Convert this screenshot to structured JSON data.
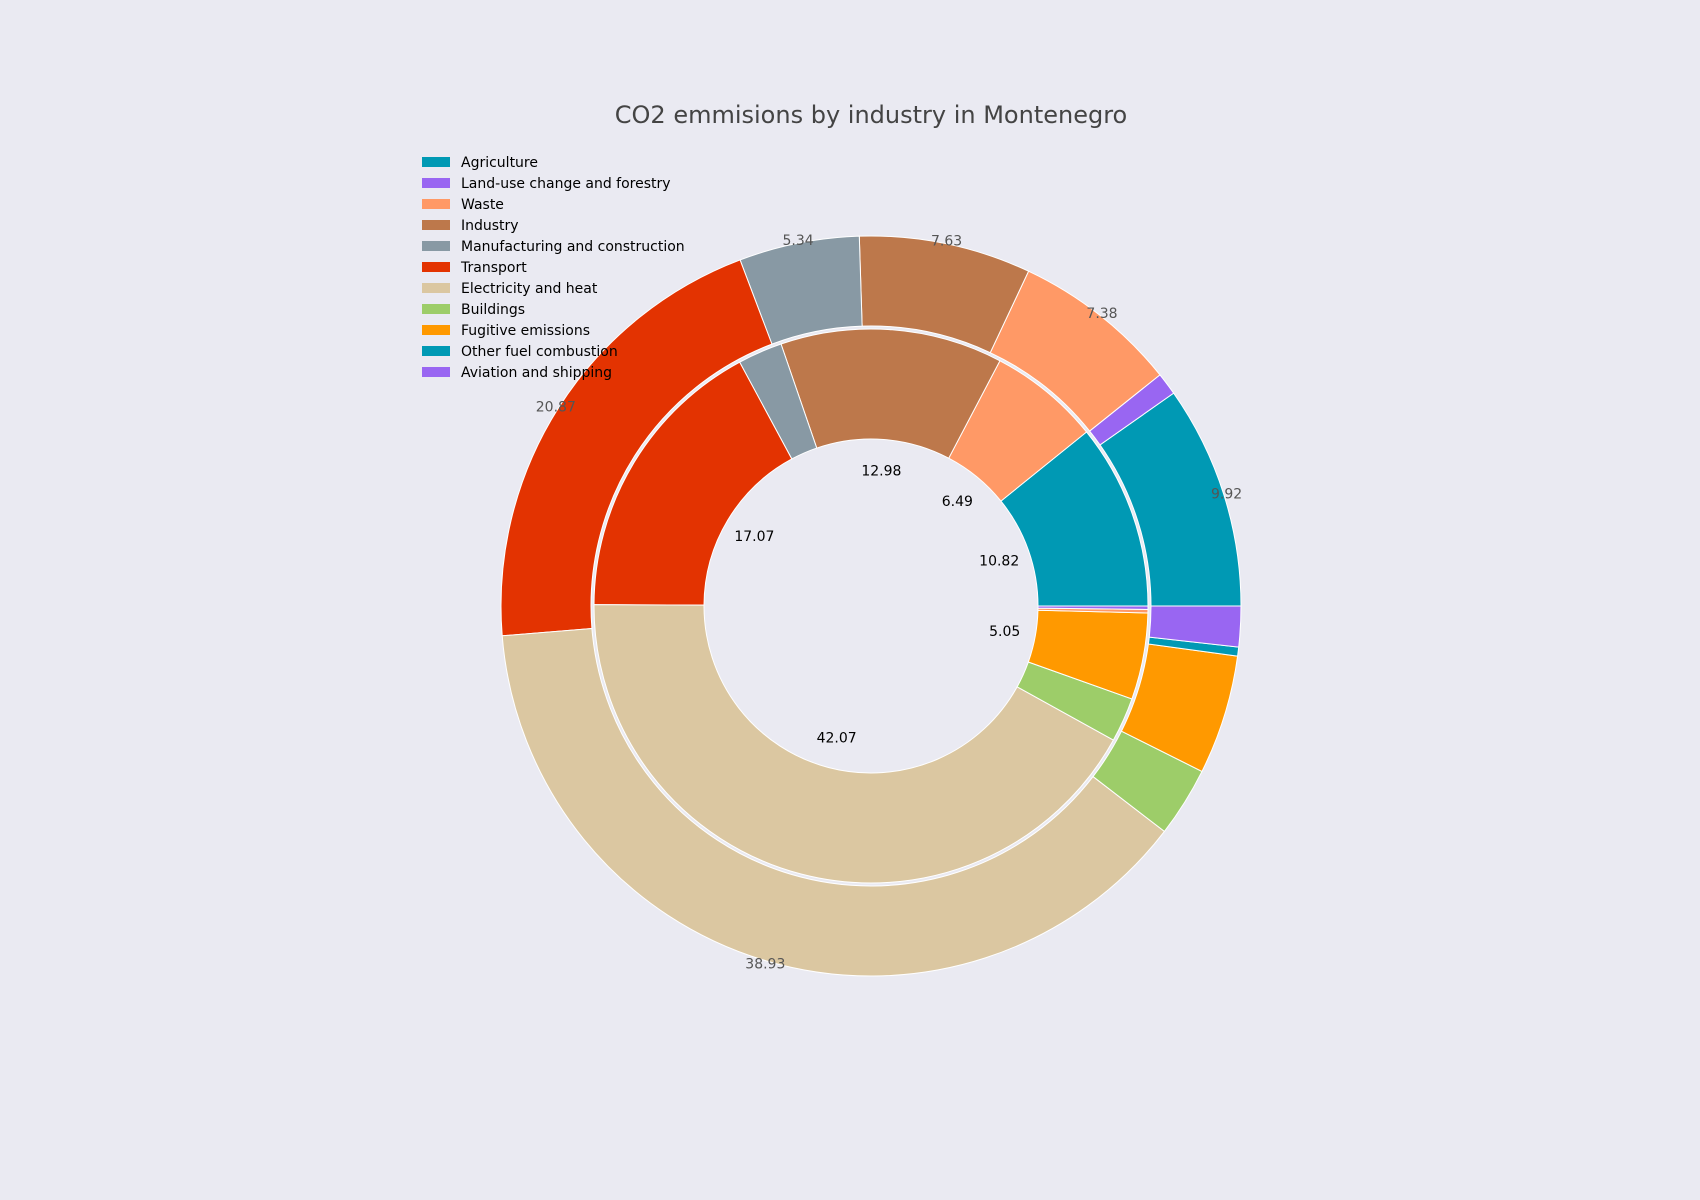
{
  "chart_data": {
    "type": "pie",
    "subtype": "nested-donut",
    "title": "CO2 emmisions by industry in Montenegro",
    "legend_position": "top-left",
    "legend": [
      {
        "label": "Agriculture",
        "color": "#0099b4"
      },
      {
        "label": "Land-use change and forestry",
        "color": "#9966f2"
      },
      {
        "label": "Waste",
        "color": "#ff9966"
      },
      {
        "label": "Industry",
        "color": "#bd784b"
      },
      {
        "label": "Manufacturing and construction",
        "color": "#8899a4"
      },
      {
        "label": "Transport",
        "color": "#e33301"
      },
      {
        "label": "Electricity and heat",
        "color": "#dbc7a1"
      },
      {
        "label": "Buildings",
        "color": "#9dcd69"
      },
      {
        "label": "Fugitive emissions",
        "color": "#ff9900"
      },
      {
        "label": "Other fuel combustion",
        "color": "#0099b4"
      },
      {
        "label": "Aviation and shipping",
        "color": "#9966f2"
      }
    ],
    "inner_ring": {
      "slices": [
        {
          "value": 10.82,
          "color": "#0099b4",
          "label": "10.82"
        },
        {
          "value": 6.49,
          "color": "#ff9966",
          "label": "6.49"
        },
        {
          "value": 12.98,
          "color": "#bd784b",
          "label": "12.98"
        },
        {
          "value": 2.6,
          "color": "#8899a4",
          "label": ""
        },
        {
          "value": 17.07,
          "color": "#e33301",
          "label": "17.07"
        },
        {
          "value": 42.07,
          "color": "#dbc7a1",
          "label": "42.07"
        },
        {
          "value": 2.6,
          "color": "#9dcd69",
          "label": ""
        },
        {
          "value": 5.05,
          "color": "#ff9900",
          "label": "5.05"
        },
        {
          "value": 0.2,
          "color": "#ff9966",
          "label": ""
        },
        {
          "value": 0.2,
          "color": "#9966f2",
          "label": ""
        }
      ]
    },
    "outer_ring": {
      "slices": [
        {
          "value": 9.92,
          "color": "#0099b4",
          "label": "9.92"
        },
        {
          "value": 1.0,
          "color": "#9966f2",
          "label": ""
        },
        {
          "value": 7.38,
          "color": "#ff9966",
          "label": "7.38"
        },
        {
          "value": 7.63,
          "color": "#bd784b",
          "label": "7.63"
        },
        {
          "value": 5.34,
          "color": "#8899a4",
          "label": "5.34"
        },
        {
          "value": 20.87,
          "color": "#e33301",
          "label": "20.87"
        },
        {
          "value": 38.93,
          "color": "#dbc7a1",
          "label": "38.93"
        },
        {
          "value": 3.1,
          "color": "#9dcd69",
          "label": ""
        },
        {
          "value": 5.3,
          "color": "#ff9900",
          "label": ""
        },
        {
          "value": 0.4,
          "color": "#0099b4",
          "label": ""
        },
        {
          "value": 1.8,
          "color": "#9966f2",
          "label": ""
        }
      ]
    }
  }
}
